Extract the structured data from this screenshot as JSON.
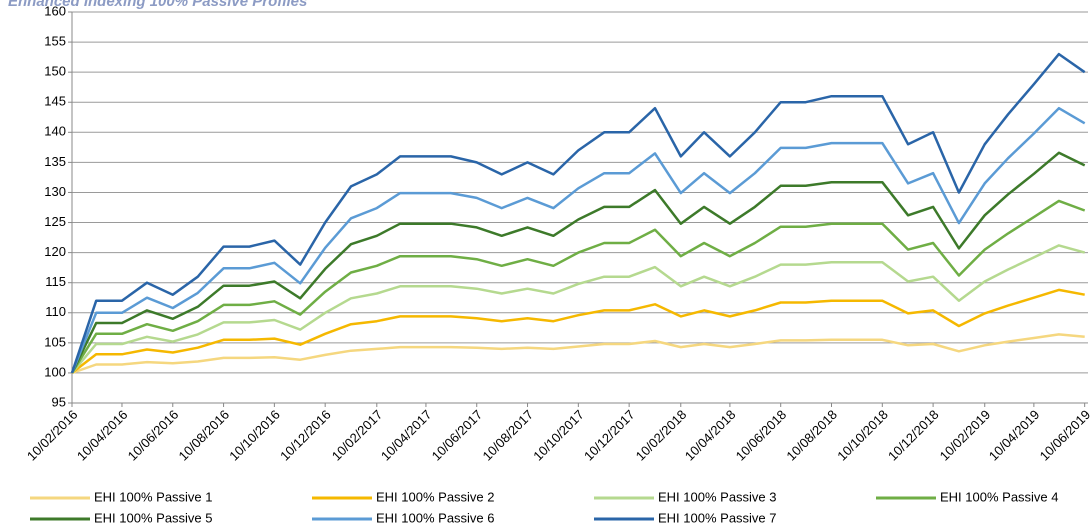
{
  "chart_data": {
    "type": "line",
    "title": "Enhanced Indexing 100% Passive Profiles",
    "x": [
      "10/02/2016",
      "10/03/2016",
      "10/04/2016",
      "10/05/2016",
      "10/06/2016",
      "10/07/2016",
      "10/08/2016",
      "10/09/2016",
      "10/10/2016",
      "10/11/2016",
      "10/12/2016",
      "10/01/2017",
      "10/02/2017",
      "10/03/2017",
      "10/04/2017",
      "10/05/2017",
      "10/06/2017",
      "10/07/2017",
      "10/08/2017",
      "10/09/2017",
      "10/10/2017",
      "10/11/2017",
      "10/12/2017",
      "10/01/2018",
      "10/02/2018",
      "10/03/2018",
      "10/04/2018",
      "10/05/2018",
      "10/06/2018",
      "10/07/2018",
      "10/08/2018",
      "10/09/2018",
      "10/10/2018",
      "10/11/2018",
      "10/12/2018",
      "10/01/2019",
      "10/02/2019",
      "10/03/2019",
      "10/04/2019",
      "10/05/2019",
      "10/06/2019"
    ],
    "series": [
      {
        "name": "EHI 100% Passive 1",
        "color": "#f5d77f",
        "values": [
          100,
          101.4,
          101.4,
          101.8,
          101.6,
          101.9,
          102.5,
          102.5,
          102.6,
          102.2,
          103,
          103.7,
          104,
          104.3,
          104.3,
          104.3,
          104.2,
          104,
          104.2,
          104,
          104.4,
          104.8,
          104.8,
          105.3,
          104.3,
          104.8,
          104.3,
          104.8,
          105.4,
          105.4,
          105.5,
          105.5,
          105.5,
          104.6,
          104.8,
          103.6,
          104.6,
          105.2,
          105.8,
          106.4,
          106
        ]
      },
      {
        "name": "EHI 100% Passive 2",
        "color": "#f5b800",
        "values": [
          100,
          103.1,
          103.1,
          103.9,
          103.4,
          104.2,
          105.5,
          105.5,
          105.7,
          104.7,
          106.5,
          108.1,
          108.6,
          109.4,
          109.4,
          109.4,
          109.1,
          108.6,
          109.1,
          108.6,
          109.6,
          110.4,
          110.4,
          111.4,
          109.4,
          110.4,
          109.4,
          110.4,
          111.7,
          111.7,
          112,
          112,
          112,
          109.9,
          110.4,
          107.8,
          109.9,
          111.2,
          112.5,
          113.8,
          113
        ]
      },
      {
        "name": "EHI 100% Passive 3",
        "color": "#b5d98f",
        "values": [
          100,
          104.8,
          104.8,
          106,
          105.2,
          106.4,
          108.4,
          108.4,
          108.8,
          107.2,
          110,
          112.4,
          113.2,
          114.4,
          114.4,
          114.4,
          114,
          113.2,
          114,
          113.2,
          114.8,
          116,
          116,
          117.6,
          114.4,
          116,
          114.4,
          116,
          118,
          118,
          118.4,
          118.4,
          118.4,
          115.2,
          116,
          112,
          115.2,
          117.2,
          119.2,
          121.2,
          120
        ]
      },
      {
        "name": "EHI 100% Passive 4",
        "color": "#6fae45",
        "values": [
          100,
          106.5,
          106.5,
          108.1,
          107,
          108.6,
          111.3,
          111.3,
          111.9,
          109.7,
          113.5,
          116.7,
          117.8,
          119.4,
          119.4,
          119.4,
          118.9,
          117.8,
          118.9,
          117.8,
          120,
          121.6,
          121.6,
          123.8,
          119.4,
          121.6,
          119.4,
          121.6,
          124.3,
          124.3,
          124.8,
          124.8,
          124.8,
          120.5,
          121.6,
          116.2,
          120.5,
          123.2,
          125.9,
          128.6,
          127
        ]
      },
      {
        "name": "EHI 100% Passive 5",
        "color": "#3d7a2a",
        "values": [
          100,
          108.3,
          108.3,
          110.4,
          109,
          111,
          114.5,
          114.5,
          115.2,
          112.4,
          117.3,
          121.4,
          122.8,
          124.8,
          124.8,
          124.8,
          124.2,
          122.8,
          124.2,
          122.8,
          125.5,
          127.6,
          127.6,
          130.4,
          124.8,
          127.6,
          124.8,
          127.6,
          131.1,
          131.1,
          131.7,
          131.7,
          131.7,
          126.2,
          127.6,
          120.7,
          126.2,
          129.7,
          133.1,
          136.6,
          134.5
        ]
      },
      {
        "name": "EHI 100% Passive 6",
        "color": "#5b9bd5",
        "values": [
          100,
          110,
          110,
          112.5,
          110.8,
          113.3,
          117.4,
          117.4,
          118.3,
          114.9,
          120.8,
          125.7,
          127.4,
          129.9,
          129.9,
          129.9,
          129.1,
          127.4,
          129.1,
          127.4,
          130.7,
          133.2,
          133.2,
          136.5,
          129.9,
          133.2,
          129.9,
          133.2,
          137.4,
          137.4,
          138.2,
          138.2,
          138.2,
          131.5,
          133.2,
          124.9,
          131.5,
          135.7,
          139.8,
          144,
          141.5
        ]
      },
      {
        "name": "EHI 100% Passive 7",
        "color": "#2a65a8",
        "values": [
          100,
          112,
          112,
          115,
          113,
          116,
          121,
          121,
          122,
          118,
          125,
          131,
          133,
          136,
          136,
          136,
          135,
          133,
          135,
          133,
          137,
          140,
          140,
          144,
          136,
          140,
          136,
          140,
          145,
          145,
          146,
          146,
          146,
          138,
          140,
          130,
          138,
          143,
          148,
          153,
          150
        ]
      }
    ],
    "xlim": [
      "10/02/2016",
      "14/06/2019"
    ],
    "xticks": [
      "10/02/2016",
      "10/04/2016",
      "10/06/2016",
      "10/08/2016",
      "10/10/2016",
      "10/12/2016",
      "10/02/2017",
      "10/04/2017",
      "10/06/2017",
      "10/08/2017",
      "10/10/2017",
      "10/12/2017",
      "10/02/2018",
      "10/04/2018",
      "10/06/2018",
      "10/08/2018",
      "10/10/2018",
      "10/12/2018",
      "10/02/2019",
      "10/04/2019",
      "10/06/2019"
    ],
    "ylim": [
      95,
      160
    ],
    "yticks": [
      95,
      100,
      105,
      110,
      115,
      120,
      125,
      130,
      135,
      140,
      145,
      150,
      155,
      160
    ],
    "grid": true,
    "legend": "bottom"
  }
}
